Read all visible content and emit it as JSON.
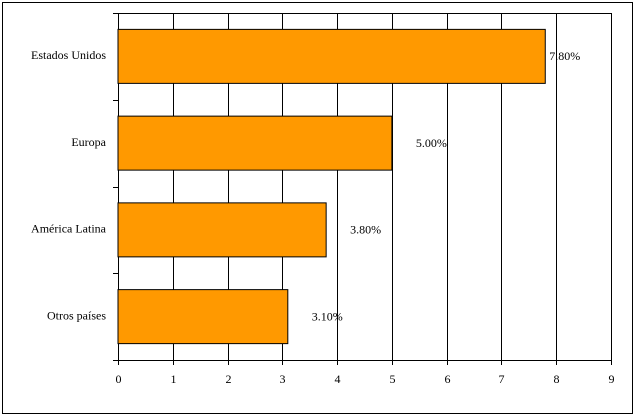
{
  "chart_data": {
    "type": "bar",
    "orientation": "horizontal",
    "categories": [
      "Estados Unidos",
      "Europa",
      "América Latina",
      "Otros países"
    ],
    "values": [
      7.8,
      5.0,
      3.8,
      3.1
    ],
    "value_labels": [
      "7.80%",
      "5.00%",
      "3.80%",
      "3.10%"
    ],
    "color": "#ff9900",
    "xlim": [
      0,
      9
    ],
    "xticks": [
      0,
      1,
      2,
      3,
      4,
      5,
      6,
      7,
      8,
      9
    ],
    "grid": true
  }
}
